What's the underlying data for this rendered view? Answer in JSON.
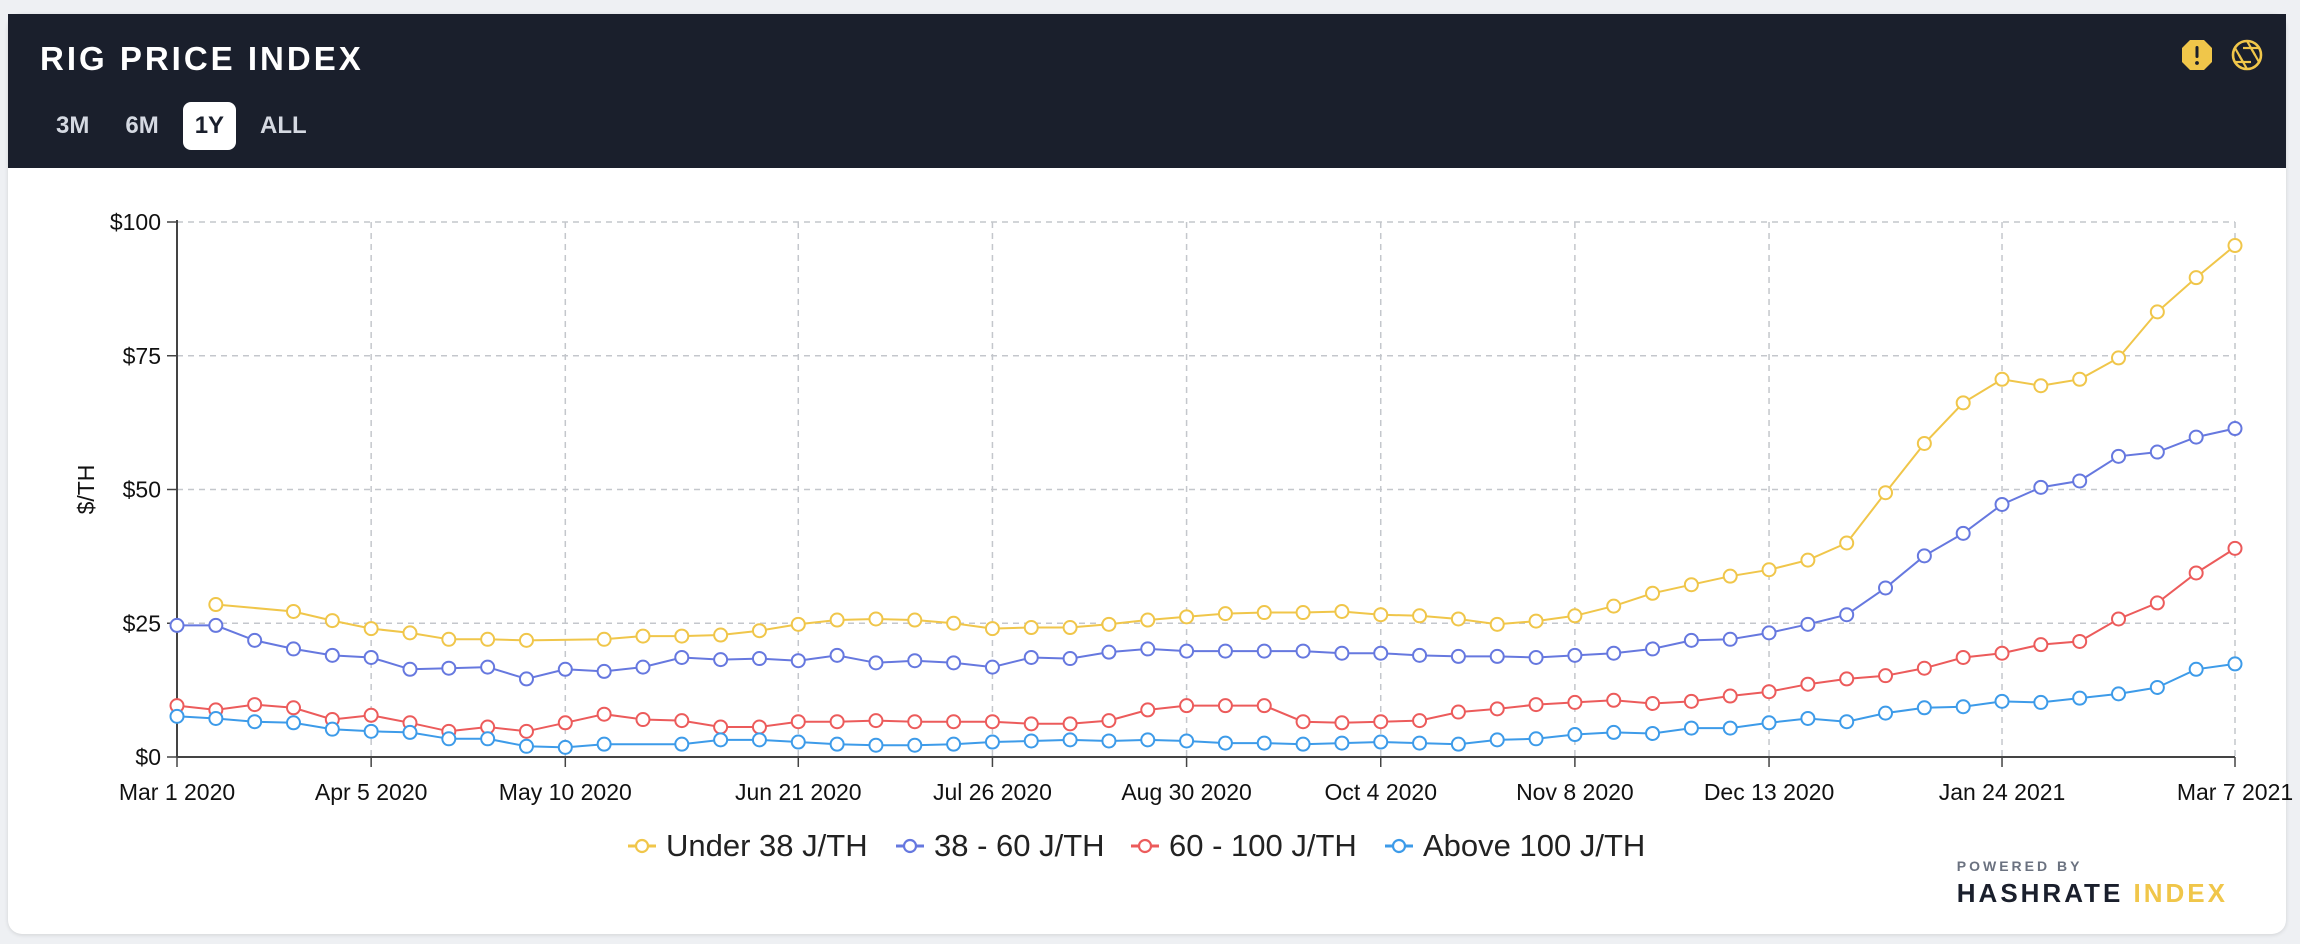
{
  "header": {
    "title": "RIG PRICE INDEX",
    "ranges": [
      {
        "label": "3M",
        "active": false
      },
      {
        "label": "6M",
        "active": false
      },
      {
        "label": "1Y",
        "active": true
      },
      {
        "label": "ALL",
        "active": false
      }
    ],
    "icons": [
      "alert-icon",
      "aperture-icon"
    ]
  },
  "branding": {
    "powered_by": "POWERED BY",
    "name_part1": "HASHRATE",
    "name_part2": "INDEX"
  },
  "chart_data": {
    "type": "line",
    "title": "",
    "xlabel": "",
    "ylabel": "$/TH",
    "ylim": [
      0,
      100
    ],
    "yticks": [
      0,
      25,
      50,
      75,
      100
    ],
    "ytick_labels": [
      "$0",
      "$25",
      "$50",
      "$75",
      "$100"
    ],
    "xlim": [
      "2020-03-01",
      "2021-03-07"
    ],
    "x_ticks": [
      {
        "date": "2020-03-01",
        "label": "Mar 1 2020"
      },
      {
        "date": "2020-04-05",
        "label": "Apr 5 2020"
      },
      {
        "date": "2020-05-10",
        "label": "May 10 2020"
      },
      {
        "date": "2020-06-21",
        "label": "Jun 21 2020"
      },
      {
        "date": "2020-07-26",
        "label": "Jul 26 2020"
      },
      {
        "date": "2020-08-30",
        "label": "Aug 30 2020"
      },
      {
        "date": "2020-10-04",
        "label": "Oct 4 2020"
      },
      {
        "date": "2020-11-08",
        "label": "Nov 8 2020"
      },
      {
        "date": "2020-12-13",
        "label": "Dec 13 2020"
      },
      {
        "date": "2021-01-24",
        "label": "Jan 24 2021"
      },
      {
        "date": "2021-03-07",
        "label": "Mar 7 2021"
      }
    ],
    "grid": true,
    "legend": "bottom-center",
    "series": [
      {
        "name": "Under 38 J/TH",
        "color": "#f0c64a",
        "points": [
          [
            "2020-03-08",
            28.5
          ],
          [
            "2020-03-22",
            27.2
          ],
          [
            "2020-03-29",
            25.5
          ],
          [
            "2020-04-05",
            24.0
          ],
          [
            "2020-04-12",
            23.2
          ],
          [
            "2020-04-19",
            22.0
          ],
          [
            "2020-04-26",
            22.0
          ],
          [
            "2020-05-03",
            21.8
          ],
          [
            "2020-05-17",
            22.0
          ],
          [
            "2020-05-24",
            22.6
          ],
          [
            "2020-05-31",
            22.6
          ],
          [
            "2020-06-07",
            22.8
          ],
          [
            "2020-06-14",
            23.6
          ],
          [
            "2020-06-21",
            24.8
          ],
          [
            "2020-06-28",
            25.6
          ],
          [
            "2020-07-05",
            25.8
          ],
          [
            "2020-07-12",
            25.6
          ],
          [
            "2020-07-19",
            25.0
          ],
          [
            "2020-07-26",
            24.0
          ],
          [
            "2020-08-02",
            24.2
          ],
          [
            "2020-08-09",
            24.2
          ],
          [
            "2020-08-16",
            24.8
          ],
          [
            "2020-08-23",
            25.6
          ],
          [
            "2020-08-30",
            26.2
          ],
          [
            "2020-09-06",
            26.8
          ],
          [
            "2020-09-13",
            27.0
          ],
          [
            "2020-09-20",
            27.0
          ],
          [
            "2020-09-27",
            27.2
          ],
          [
            "2020-10-04",
            26.6
          ],
          [
            "2020-10-11",
            26.4
          ],
          [
            "2020-10-18",
            25.8
          ],
          [
            "2020-10-25",
            24.8
          ],
          [
            "2020-11-01",
            25.4
          ],
          [
            "2020-11-08",
            26.4
          ],
          [
            "2020-11-15",
            28.2
          ],
          [
            "2020-11-22",
            30.6
          ],
          [
            "2020-11-29",
            32.2
          ],
          [
            "2020-12-06",
            33.8
          ],
          [
            "2020-12-13",
            35.0
          ],
          [
            "2020-12-20",
            36.8
          ],
          [
            "2020-12-27",
            40.0
          ],
          [
            "2021-01-03",
            49.4
          ],
          [
            "2021-01-10",
            58.6
          ],
          [
            "2021-01-17",
            66.2
          ],
          [
            "2021-01-24",
            70.6
          ],
          [
            "2021-01-31",
            69.4
          ],
          [
            "2021-02-07",
            70.6
          ],
          [
            "2021-02-14",
            74.6
          ],
          [
            "2021-02-21",
            83.2
          ],
          [
            "2021-02-28",
            89.6
          ],
          [
            "2021-03-07",
            95.6
          ]
        ]
      },
      {
        "name": "38 - 60 J/TH",
        "color": "#6678df",
        "points": [
          [
            "2020-03-01",
            24.6
          ],
          [
            "2020-03-08",
            24.6
          ],
          [
            "2020-03-15",
            21.8
          ],
          [
            "2020-03-22",
            20.2
          ],
          [
            "2020-03-29",
            19.0
          ],
          [
            "2020-04-05",
            18.6
          ],
          [
            "2020-04-12",
            16.4
          ],
          [
            "2020-04-19",
            16.6
          ],
          [
            "2020-04-26",
            16.8
          ],
          [
            "2020-05-03",
            14.6
          ],
          [
            "2020-05-10",
            16.4
          ],
          [
            "2020-05-17",
            16.0
          ],
          [
            "2020-05-24",
            16.8
          ],
          [
            "2020-05-31",
            18.6
          ],
          [
            "2020-06-07",
            18.2
          ],
          [
            "2020-06-14",
            18.4
          ],
          [
            "2020-06-21",
            18.0
          ],
          [
            "2020-06-28",
            19.0
          ],
          [
            "2020-07-05",
            17.6
          ],
          [
            "2020-07-12",
            18.0
          ],
          [
            "2020-07-19",
            17.6
          ],
          [
            "2020-07-26",
            16.8
          ],
          [
            "2020-08-02",
            18.6
          ],
          [
            "2020-08-09",
            18.4
          ],
          [
            "2020-08-16",
            19.6
          ],
          [
            "2020-08-23",
            20.2
          ],
          [
            "2020-08-30",
            19.8
          ],
          [
            "2020-09-06",
            19.8
          ],
          [
            "2020-09-13",
            19.8
          ],
          [
            "2020-09-20",
            19.8
          ],
          [
            "2020-09-27",
            19.4
          ],
          [
            "2020-10-04",
            19.4
          ],
          [
            "2020-10-11",
            19.0
          ],
          [
            "2020-10-18",
            18.8
          ],
          [
            "2020-10-25",
            18.8
          ],
          [
            "2020-11-01",
            18.6
          ],
          [
            "2020-11-08",
            19.0
          ],
          [
            "2020-11-15",
            19.4
          ],
          [
            "2020-11-22",
            20.2
          ],
          [
            "2020-11-29",
            21.8
          ],
          [
            "2020-12-06",
            22.0
          ],
          [
            "2020-12-13",
            23.2
          ],
          [
            "2020-12-20",
            24.8
          ],
          [
            "2020-12-27",
            26.6
          ],
          [
            "2021-01-03",
            31.6
          ],
          [
            "2021-01-10",
            37.6
          ],
          [
            "2021-01-17",
            41.8
          ],
          [
            "2021-01-24",
            47.2
          ],
          [
            "2021-01-31",
            50.4
          ],
          [
            "2021-02-07",
            51.6
          ],
          [
            "2021-02-14",
            56.2
          ],
          [
            "2021-02-21",
            57.0
          ],
          [
            "2021-02-28",
            59.8
          ],
          [
            "2021-03-07",
            61.4
          ]
        ]
      },
      {
        "name": "60 - 100 J/TH",
        "color": "#ec5b5b",
        "points": [
          [
            "2020-03-01",
            9.6
          ],
          [
            "2020-03-08",
            8.8
          ],
          [
            "2020-03-15",
            9.8
          ],
          [
            "2020-03-22",
            9.2
          ],
          [
            "2020-03-29",
            7.0
          ],
          [
            "2020-04-05",
            7.8
          ],
          [
            "2020-04-12",
            6.4
          ],
          [
            "2020-04-19",
            4.8
          ],
          [
            "2020-04-26",
            5.6
          ],
          [
            "2020-05-03",
            4.8
          ],
          [
            "2020-05-10",
            6.4
          ],
          [
            "2020-05-17",
            8.0
          ],
          [
            "2020-05-24",
            7.0
          ],
          [
            "2020-05-31",
            6.8
          ],
          [
            "2020-06-07",
            5.6
          ],
          [
            "2020-06-14",
            5.6
          ],
          [
            "2020-06-21",
            6.6
          ],
          [
            "2020-06-28",
            6.6
          ],
          [
            "2020-07-05",
            6.8
          ],
          [
            "2020-07-12",
            6.6
          ],
          [
            "2020-07-19",
            6.6
          ],
          [
            "2020-07-26",
            6.6
          ],
          [
            "2020-08-02",
            6.2
          ],
          [
            "2020-08-09",
            6.2
          ],
          [
            "2020-08-16",
            6.8
          ],
          [
            "2020-08-23",
            8.8
          ],
          [
            "2020-08-30",
            9.6
          ],
          [
            "2020-09-06",
            9.6
          ],
          [
            "2020-09-13",
            9.6
          ],
          [
            "2020-09-20",
            6.6
          ],
          [
            "2020-09-27",
            6.4
          ],
          [
            "2020-10-04",
            6.6
          ],
          [
            "2020-10-11",
            6.8
          ],
          [
            "2020-10-18",
            8.4
          ],
          [
            "2020-10-25",
            9.0
          ],
          [
            "2020-11-01",
            9.8
          ],
          [
            "2020-11-08",
            10.2
          ],
          [
            "2020-11-15",
            10.6
          ],
          [
            "2020-11-22",
            10.0
          ],
          [
            "2020-11-29",
            10.4
          ],
          [
            "2020-12-06",
            11.4
          ],
          [
            "2020-12-13",
            12.2
          ],
          [
            "2020-12-20",
            13.6
          ],
          [
            "2020-12-27",
            14.6
          ],
          [
            "2021-01-03",
            15.2
          ],
          [
            "2021-01-10",
            16.6
          ],
          [
            "2021-01-17",
            18.6
          ],
          [
            "2021-01-24",
            19.4
          ],
          [
            "2021-01-31",
            21.0
          ],
          [
            "2021-02-07",
            21.6
          ],
          [
            "2021-02-14",
            25.8
          ],
          [
            "2021-02-21",
            28.8
          ],
          [
            "2021-02-28",
            34.4
          ],
          [
            "2021-03-07",
            39.0
          ]
        ]
      },
      {
        "name": "Above 100 J/TH",
        "color": "#3d9be9",
        "points": [
          [
            "2020-03-01",
            7.6
          ],
          [
            "2020-03-08",
            7.2
          ],
          [
            "2020-03-15",
            6.6
          ],
          [
            "2020-03-22",
            6.4
          ],
          [
            "2020-03-29",
            5.2
          ],
          [
            "2020-04-05",
            4.8
          ],
          [
            "2020-04-12",
            4.6
          ],
          [
            "2020-04-19",
            3.4
          ],
          [
            "2020-04-26",
            3.4
          ],
          [
            "2020-05-03",
            2.0
          ],
          [
            "2020-05-10",
            1.8
          ],
          [
            "2020-05-17",
            2.4
          ],
          [
            "2020-05-31",
            2.4
          ],
          [
            "2020-06-07",
            3.2
          ],
          [
            "2020-06-14",
            3.2
          ],
          [
            "2020-06-21",
            2.8
          ],
          [
            "2020-06-28",
            2.4
          ],
          [
            "2020-07-05",
            2.2
          ],
          [
            "2020-07-12",
            2.2
          ],
          [
            "2020-07-19",
            2.4
          ],
          [
            "2020-07-26",
            2.8
          ],
          [
            "2020-08-02",
            3.0
          ],
          [
            "2020-08-09",
            3.2
          ],
          [
            "2020-08-16",
            3.0
          ],
          [
            "2020-08-23",
            3.2
          ],
          [
            "2020-08-30",
            3.0
          ],
          [
            "2020-09-06",
            2.6
          ],
          [
            "2020-09-13",
            2.6
          ],
          [
            "2020-09-20",
            2.4
          ],
          [
            "2020-09-27",
            2.6
          ],
          [
            "2020-10-04",
            2.8
          ],
          [
            "2020-10-11",
            2.6
          ],
          [
            "2020-10-18",
            2.4
          ],
          [
            "2020-10-25",
            3.2
          ],
          [
            "2020-11-01",
            3.4
          ],
          [
            "2020-11-08",
            4.2
          ],
          [
            "2020-11-15",
            4.6
          ],
          [
            "2020-11-22",
            4.4
          ],
          [
            "2020-11-29",
            5.4
          ],
          [
            "2020-12-06",
            5.4
          ],
          [
            "2020-12-13",
            6.4
          ],
          [
            "2020-12-20",
            7.2
          ],
          [
            "2020-12-27",
            6.6
          ],
          [
            "2021-01-03",
            8.2
          ],
          [
            "2021-01-10",
            9.2
          ],
          [
            "2021-01-17",
            9.4
          ],
          [
            "2021-01-24",
            10.4
          ],
          [
            "2021-01-31",
            10.2
          ],
          [
            "2021-02-07",
            11.0
          ],
          [
            "2021-02-14",
            11.8
          ],
          [
            "2021-02-21",
            13.0
          ],
          [
            "2021-02-28",
            16.4
          ],
          [
            "2021-03-07",
            17.4
          ]
        ]
      }
    ]
  }
}
